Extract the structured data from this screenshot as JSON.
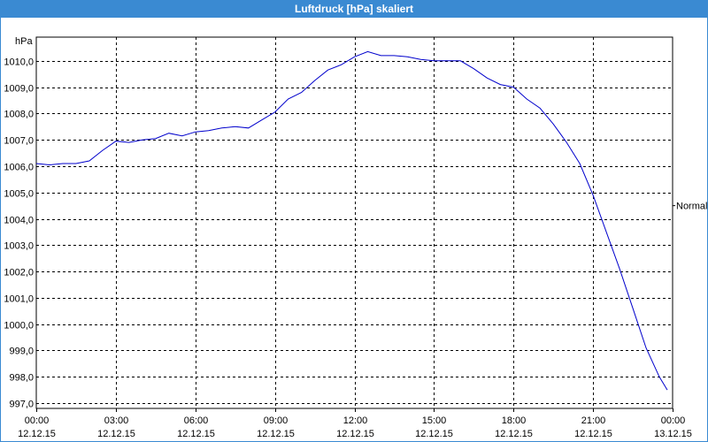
{
  "window": {
    "title": "Luftdruck [hPa] skaliert"
  },
  "colors": {
    "titlebar": "#3a8ad2",
    "line": "#0000cc",
    "grid": "#000000"
  },
  "chart_data": {
    "type": "line",
    "title": "Luftdruck [hPa] skaliert",
    "ylabel": "hPa",
    "xlabel": "",
    "ylim": [
      996.8,
      1010.9
    ],
    "y_ticks": [
      "1010,0",
      "1009,0",
      "1008,0",
      "1007,0",
      "1006,0",
      "1005,0",
      "1004,0",
      "1003,0",
      "1002,0",
      "1001,0",
      "1000,0",
      "999,0",
      "998,0",
      "997,0"
    ],
    "y_tick_values": [
      1010,
      1009,
      1008,
      1007,
      1006,
      1005,
      1004,
      1003,
      1002,
      1001,
      1000,
      999,
      998,
      997
    ],
    "x_ticks": [
      {
        "time": "00:00",
        "date": "12.12.15"
      },
      {
        "time": "03:00",
        "date": "12.12.15"
      },
      {
        "time": "06:00",
        "date": "12.12.15"
      },
      {
        "time": "09:00",
        "date": "12.12.15"
      },
      {
        "time": "12:00",
        "date": "12.12.15"
      },
      {
        "time": "15:00",
        "date": "12.12.15"
      },
      {
        "time": "18:00",
        "date": "12.12.15"
      },
      {
        "time": "21:00",
        "date": "12.12.15"
      },
      {
        "time": "00:00",
        "date": "13.12.15"
      }
    ],
    "x_tick_hours": [
      0,
      3,
      6,
      9,
      12,
      15,
      18,
      21,
      24
    ],
    "xlim": [
      0,
      24
    ],
    "grid": true,
    "right_label": "Normal",
    "right_label_value": 1004.5,
    "series": [
      {
        "x": [
          0,
          0.5,
          1,
          1.5,
          2,
          2.5,
          3,
          3.5,
          4,
          4.5,
          5,
          5.5,
          6,
          6.5,
          7,
          7.5,
          8,
          8.5,
          9,
          9.5,
          10,
          10.5,
          11,
          11.5,
          12,
          12.5,
          13,
          13.5,
          14,
          14.5,
          15,
          15.5,
          16,
          16.5,
          17,
          17.5,
          18,
          18.5,
          19,
          19.5,
          20,
          20.5,
          21,
          21.5,
          22,
          22.5,
          23,
          23.5,
          23.8
        ],
        "y": [
          1006.1,
          1006.05,
          1006.1,
          1006.1,
          1006.2,
          1006.6,
          1006.95,
          1006.9,
          1007.0,
          1007.05,
          1007.25,
          1007.15,
          1007.3,
          1007.35,
          1007.45,
          1007.5,
          1007.45,
          1007.75,
          1008.05,
          1008.55,
          1008.8,
          1009.25,
          1009.65,
          1009.85,
          1010.15,
          1010.35,
          1010.2,
          1010.2,
          1010.15,
          1010.05,
          1010.0,
          1010.0,
          1010.0,
          1009.7,
          1009.35,
          1009.1,
          1009.0,
          1008.55,
          1008.2,
          1007.6,
          1006.9,
          1006.1,
          1004.9,
          1003.5,
          1002.1,
          1000.6,
          999.1,
          998.0,
          997.5
        ]
      }
    ]
  }
}
